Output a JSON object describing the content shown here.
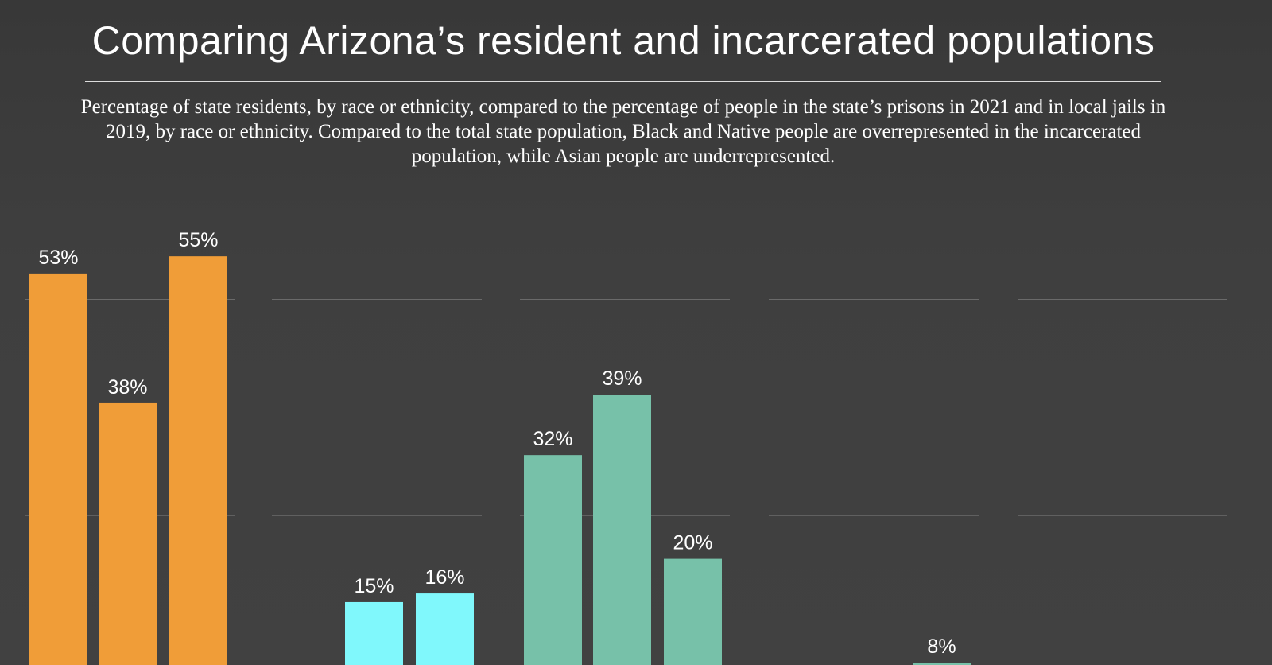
{
  "title": "Comparing Arizona’s resident and incarcerated populations",
  "subtitle": "Percentage of state residents, by race or ethnicity, compared to the percentage of people in the state’s prisons in 2021 and in local jails in 2019, by race or ethnicity. Compared to the total state population, Black and Native people are overrepresented in the incarcerated population, while Asian people are underrepresented.",
  "chart_data": {
    "type": "bar",
    "ylim": [
      0,
      55
    ],
    "gridlines": [
      25,
      50
    ],
    "grid": true,
    "panels": [
      {
        "color": "#f09d38",
        "values": [
          53,
          38,
          55
        ],
        "labels": [
          "53%",
          "38%",
          "55%"
        ]
      },
      {
        "color": "#80f8fc",
        "values": [
          null,
          15,
          16
        ],
        "labels": [
          "",
          "15%",
          "16%"
        ]
      },
      {
        "color": "#77c1a9",
        "values": [
          32,
          39,
          20
        ],
        "labels": [
          "32%",
          "39%",
          "20%"
        ]
      },
      {
        "color": "#77c1a9",
        "values": [
          null,
          null,
          8
        ],
        "labels": [
          "",
          "",
          "8%"
        ]
      },
      {
        "color": "#77c1a9",
        "values": [
          null,
          null,
          null
        ],
        "labels": [
          "",
          "",
          ""
        ]
      }
    ]
  }
}
